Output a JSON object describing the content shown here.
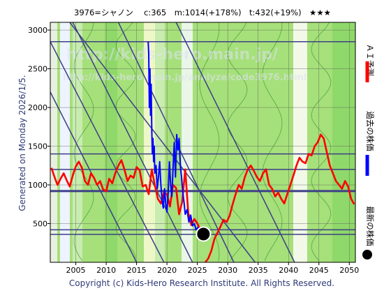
{
  "header": {
    "title": "3976=シャノン　 c:365　m:1014(+178%)　t:432(+19%)　★★★"
  },
  "side_label": "Generated on Monday 2026/1/5.",
  "footer": "Copyright (c) Kids-Hero Research Institute. All Rights Reserved.",
  "watermark": {
    "line1": "http://kids-hero.main.jp/",
    "line2": "http://kids-hero.main.jp/analyze/code3976.html"
  },
  "legend": [
    {
      "label": "ＡＩ予測",
      "color": "#ff0000"
    },
    {
      "label": "過去の株価",
      "color": "#0000ff"
    },
    {
      "label": "最新の株価",
      "color": "#000000"
    }
  ],
  "chart_data": {
    "type": "line",
    "title": "3976=シャノン　 c:365　m:1014(+178%)　t:432(+19%)　★★★",
    "xlabel": "",
    "ylabel": "",
    "xlim": [
      2000.8,
      2051.0
    ],
    "ylim": [
      0,
      3100
    ],
    "x_ticks": [
      2005,
      2010,
      2015,
      2020,
      2025,
      2030,
      2035,
      2040,
      2045,
      2050
    ],
    "y_ticks": [
      500,
      1000,
      1500,
      2000,
      2500,
      3000
    ],
    "grid": true,
    "legend_position": "right",
    "horizontal_lines": [
      2850,
      1400,
      1200,
      920,
      420,
      360
    ],
    "highlight_line": 920,
    "latest_point": {
      "x": 2026.0,
      "y": 365
    },
    "trend_lines": [
      {
        "from": [
          2004.5,
          3100
        ],
        "to": [
          2024.2,
          0
        ]
      },
      {
        "from": [
          2000.8,
          2850
        ],
        "to": [
          2019.5,
          0
        ]
      },
      {
        "from": [
          2000.8,
          2200
        ],
        "to": [
          2015.0,
          0
        ]
      },
      {
        "from": [
          2012.0,
          3100
        ],
        "to": [
          2031.0,
          0
        ]
      },
      {
        "from": [
          2021.5,
          3100
        ],
        "to": [
          2041.0,
          0
        ]
      },
      {
        "from": [
          2004.0,
          3100
        ],
        "to": [
          2034.5,
          0
        ]
      }
    ],
    "series": [
      {
        "name": "AI予測",
        "color": "#ff0000",
        "x": [
          2001,
          2001.5,
          2002,
          2002.5,
          2003,
          2003.5,
          2004,
          2004.5,
          2005,
          2005.5,
          2006,
          2006.5,
          2007,
          2007.5,
          2008,
          2008.5,
          2009,
          2009.5,
          2010,
          2010.5,
          2011,
          2011.5,
          2012,
          2012.5,
          2013,
          2013.5,
          2014,
          2014.5,
          2015,
          2015.5,
          2016,
          2016.5,
          2017,
          2017.5,
          2018,
          2018.5,
          2019,
          2019.5,
          2020,
          2020.5,
          2021,
          2021.5,
          2022,
          2022.5,
          2023,
          2023.5,
          2024,
          2024.5,
          2025,
          2025.5,
          2026
        ],
        "y": [
          1220,
          1100,
          1000,
          1080,
          1150,
          1060,
          980,
          1120,
          1240,
          1300,
          1220,
          1050,
          1000,
          1150,
          1090,
          1000,
          1050,
          940,
          920,
          1080,
          1020,
          1150,
          1250,
          1320,
          1200,
          1050,
          1120,
          1090,
          1230,
          1190,
          980,
          1000,
          880,
          1200,
          1000,
          820,
          760,
          900,
          880,
          720,
          1000,
          960,
          620,
          780,
          1200,
          640,
          480,
          560,
          500,
          420,
          380
        ]
      },
      {
        "name": "AI予測2",
        "color": "#ff0000",
        "x": [
          2026.3,
          2026.8,
          2027.3,
          2027.8,
          2028.3,
          2028.8,
          2029.3,
          2029.8,
          2030.3,
          2030.8,
          2031.3,
          2031.8,
          2032.3,
          2032.8,
          2033.3,
          2033.8,
          2034.3,
          2034.8,
          2035.3,
          2035.8,
          2036.3,
          2036.8,
          2037.3,
          2037.8,
          2038.3,
          2038.8,
          2039.3,
          2039.8,
          2040.3,
          2040.8,
          2041.3,
          2041.8,
          2042.3,
          2042.8,
          2043.3,
          2043.8,
          2044.3,
          2044.8,
          2045.3,
          2045.8,
          2046.3,
          2046.8,
          2047.3,
          2047.8,
          2048.3,
          2048.8,
          2049.3,
          2049.8,
          2050.3,
          2050.8
        ],
        "y": [
          0,
          50,
          150,
          300,
          380,
          460,
          550,
          520,
          600,
          750,
          880,
          1000,
          950,
          1100,
          1200,
          1250,
          1180,
          1100,
          1050,
          1150,
          1200,
          1000,
          950,
          850,
          900,
          820,
          760,
          880,
          1000,
          1120,
          1250,
          1350,
          1300,
          1280,
          1400,
          1380,
          1500,
          1550,
          1650,
          1600,
          1420,
          1250,
          1150,
          1050,
          1000,
          950,
          1050,
          980,
          820,
          750
        ]
      },
      {
        "name": "過去の株価",
        "color": "#0000ff",
        "x": [
          2016.9,
          2017.0,
          2017.1,
          2017.2,
          2017.3,
          2017.4,
          2017.5,
          2017.6,
          2017.7,
          2017.8,
          2017.9,
          2018.0,
          2018.2,
          2018.4,
          2018.6,
          2018.8,
          2019.0,
          2019.2,
          2019.4,
          2019.6,
          2019.8,
          2020.0,
          2020.2,
          2020.4,
          2020.6,
          2020.8,
          2021.0,
          2021.2,
          2021.4,
          2021.6,
          2021.8,
          2022.0,
          2022.2,
          2022.4,
          2022.6,
          2022.8,
          2023.0,
          2023.3,
          2023.6,
          2023.9,
          2024.2,
          2024.5,
          2024.8,
          2025.1,
          2025.4,
          2025.7,
          2026.0
        ],
        "y": [
          2850,
          2700,
          2000,
          2500,
          1900,
          2300,
          1700,
          1400,
          1600,
          1300,
          1500,
          1150,
          1250,
          950,
          1100,
          1300,
          1000,
          800,
          700,
          950,
          750,
          650,
          900,
          1300,
          1000,
          850,
          1200,
          1550,
          1100,
          1650,
          1450,
          1600,
          1250,
          1100,
          900,
          780,
          620,
          680,
          520,
          610,
          470,
          500,
          420,
          450,
          400,
          380,
          365
        ]
      }
    ]
  }
}
